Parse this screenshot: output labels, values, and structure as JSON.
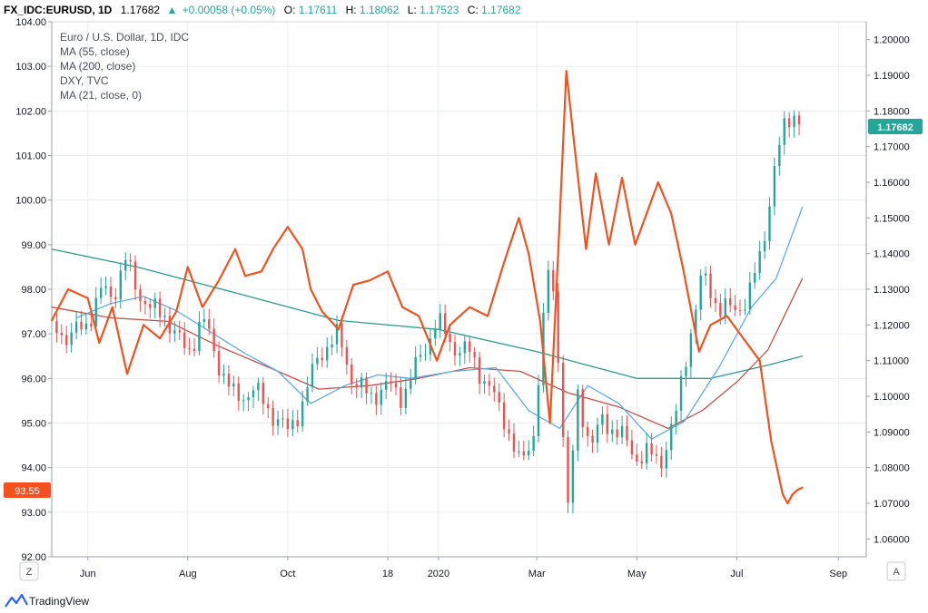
{
  "header": {
    "symbol": "FX_IDC:EURUSD, 1D",
    "last": "1.17682",
    "arrow": "▲",
    "change": "+0.00058 (+0.05%)",
    "o_label": "O:",
    "o_value": "1.17611",
    "h_label": "H:",
    "h_value": "1.18062",
    "l_label": "L:",
    "l_value": "1.17523",
    "c_label": "C:",
    "c_value": "1.17682"
  },
  "legend": [
    "Euro / U.S. Dollar, 1D, IDC",
    "MA (55, close)",
    "MA (200, close)",
    "DXY, TVC",
    "MA (21, close, 0)"
  ],
  "colors": {
    "up": "#26a69a",
    "down": "#ef5350",
    "dxy": "#f4511e",
    "ma55": "#5aaee8",
    "ma200": "#c8504a",
    "ma21": "#2a9d8f"
  },
  "buttons": {
    "left": "Z",
    "right": "A"
  },
  "brand": {
    "name": "TradingView"
  },
  "chart_data": {
    "type": "line",
    "x_range": [
      "2019-05-10",
      "2020-09-18"
    ],
    "x_ticks": [
      "Jun",
      "Aug",
      "Oct",
      "18",
      "2020",
      "Mar",
      "May",
      "Jul",
      "Sep"
    ],
    "x_tick_dates": [
      "2019-06-01",
      "2019-08-01",
      "2019-10-01",
      "2019-12-01",
      "2020-01-01",
      "2020-03-01",
      "2020-05-01",
      "2020-07-01",
      "2020-09-01"
    ],
    "left_axis": {
      "range": [
        92.0,
        104.0
      ],
      "ticks": [
        "104.00",
        "103.00",
        "102.00",
        "101.00",
        "100.00",
        "99.00",
        "98.00",
        "97.00",
        "96.00",
        "95.00",
        "94.00",
        "93.00",
        "92.00"
      ],
      "last_label": "93.55"
    },
    "right_axis": {
      "range": [
        1.055,
        1.205
      ],
      "ticks": [
        "1.20000",
        "1.19000",
        "1.18000",
        "1.17000",
        "1.16000",
        "1.15000",
        "1.14000",
        "1.13000",
        "1.12000",
        "1.11000",
        "1.10000",
        "1.09000",
        "1.08000",
        "1.07000",
        "1.06000"
      ],
      "last_label": "1.17682"
    },
    "series": [
      {
        "name": "DXY, TVC",
        "axis": "left",
        "points": [
          [
            "2019-05-10",
            97.3
          ],
          [
            "2019-05-20",
            98.0
          ],
          [
            "2019-06-01",
            97.8
          ],
          [
            "2019-06-08",
            96.8
          ],
          [
            "2019-06-16",
            97.6
          ],
          [
            "2019-06-25",
            96.1
          ],
          [
            "2019-07-05",
            97.2
          ],
          [
            "2019-07-15",
            96.9
          ],
          [
            "2019-07-25",
            97.5
          ],
          [
            "2019-08-01",
            98.5
          ],
          [
            "2019-08-10",
            97.6
          ],
          [
            "2019-08-20",
            98.2
          ],
          [
            "2019-08-30",
            98.9
          ],
          [
            "2019-09-05",
            98.3
          ],
          [
            "2019-09-15",
            98.4
          ],
          [
            "2019-09-22",
            98.9
          ],
          [
            "2019-10-01",
            99.4
          ],
          [
            "2019-10-10",
            98.9
          ],
          [
            "2019-10-15",
            98.0
          ],
          [
            "2019-10-22",
            97.5
          ],
          [
            "2019-11-01",
            97.1
          ],
          [
            "2019-11-10",
            98.1
          ],
          [
            "2019-11-20",
            98.2
          ],
          [
            "2019-12-01",
            98.4
          ],
          [
            "2019-12-10",
            97.6
          ],
          [
            "2019-12-20",
            97.4
          ],
          [
            "2019-12-31",
            96.4
          ],
          [
            "2020-01-08",
            97.2
          ],
          [
            "2020-01-20",
            97.6
          ],
          [
            "2020-01-31",
            97.4
          ],
          [
            "2020-02-10",
            98.6
          ],
          [
            "2020-02-19",
            99.6
          ],
          [
            "2020-02-25",
            98.8
          ],
          [
            "2020-03-03",
            97.3
          ],
          [
            "2020-03-09",
            95.0
          ],
          [
            "2020-03-14",
            98.8
          ],
          [
            "2020-03-19",
            102.9
          ],
          [
            "2020-03-24",
            101.2
          ],
          [
            "2020-03-31",
            98.9
          ],
          [
            "2020-04-06",
            100.6
          ],
          [
            "2020-04-14",
            99.0
          ],
          [
            "2020-04-22",
            100.5
          ],
          [
            "2020-04-30",
            99.0
          ],
          [
            "2020-05-08",
            99.8
          ],
          [
            "2020-05-14",
            100.4
          ],
          [
            "2020-05-22",
            99.7
          ],
          [
            "2020-05-29",
            98.5
          ],
          [
            "2020-06-08",
            96.6
          ],
          [
            "2020-06-15",
            97.2
          ],
          [
            "2020-06-25",
            97.4
          ],
          [
            "2020-07-05",
            96.9
          ],
          [
            "2020-07-15",
            96.4
          ],
          [
            "2020-07-22",
            94.6
          ],
          [
            "2020-07-29",
            93.4
          ],
          [
            "2020-08-01",
            93.2
          ],
          [
            "2020-08-04",
            93.4
          ],
          [
            "2020-08-07",
            93.5
          ],
          [
            "2020-08-10",
            93.55
          ]
        ]
      },
      {
        "name": "MA (55, close)",
        "axis": "right",
        "points": [
          [
            "2019-05-25",
            1.122
          ],
          [
            "2019-06-15",
            1.126
          ],
          [
            "2019-07-05",
            1.128
          ],
          [
            "2019-07-25",
            1.124
          ],
          [
            "2019-08-15",
            1.118
          ],
          [
            "2019-09-05",
            1.112
          ],
          [
            "2019-09-25",
            1.107
          ],
          [
            "2019-10-15",
            1.098
          ],
          [
            "2019-11-05",
            1.103
          ],
          [
            "2019-11-25",
            1.106
          ],
          [
            "2019-12-15",
            1.105
          ],
          [
            "2020-01-10",
            1.107
          ],
          [
            "2020-02-05",
            1.108
          ],
          [
            "2020-02-25",
            1.096
          ],
          [
            "2020-03-15",
            1.091
          ],
          [
            "2020-04-01",
            1.103
          ],
          [
            "2020-04-20",
            1.098
          ],
          [
            "2020-05-10",
            1.088
          ],
          [
            "2020-05-30",
            1.093
          ],
          [
            "2020-06-20",
            1.108
          ],
          [
            "2020-07-10",
            1.125
          ],
          [
            "2020-07-25",
            1.133
          ],
          [
            "2020-08-10",
            1.153
          ]
        ]
      },
      {
        "name": "MA (200, close)",
        "axis": "right",
        "points": [
          [
            "2019-05-10",
            1.125
          ],
          [
            "2019-06-15",
            1.122
          ],
          [
            "2019-07-20",
            1.121
          ],
          [
            "2019-08-20",
            1.114
          ],
          [
            "2019-09-20",
            1.108
          ],
          [
            "2019-10-20",
            1.102
          ],
          [
            "2019-11-20",
            1.103
          ],
          [
            "2019-12-20",
            1.105
          ],
          [
            "2020-01-20",
            1.108
          ],
          [
            "2020-02-20",
            1.107
          ],
          [
            "2020-03-20",
            1.101
          ],
          [
            "2020-04-20",
            1.097
          ],
          [
            "2020-05-20",
            1.091
          ],
          [
            "2020-06-10",
            1.096
          ],
          [
            "2020-07-01",
            1.104
          ],
          [
            "2020-07-20",
            1.113
          ],
          [
            "2020-08-10",
            1.133
          ]
        ]
      },
      {
        "name": "MA (21, close, 0)",
        "axis": "left",
        "points": [
          [
            "2019-05-10",
            98.9
          ],
          [
            "2019-07-01",
            98.5
          ],
          [
            "2019-09-01",
            97.9
          ],
          [
            "2019-11-01",
            97.3
          ],
          [
            "2020-01-01",
            97.1
          ],
          [
            "2020-03-01",
            96.6
          ],
          [
            "2020-05-01",
            96.0
          ],
          [
            "2020-06-15",
            96.0
          ],
          [
            "2020-07-20",
            96.3
          ],
          [
            "2020-08-10",
            96.5
          ]
        ]
      },
      {
        "name": "Euro / U.S. Dollar, 1D, IDC",
        "axis": "right",
        "type": "candlestick",
        "points": [
          [
            "2019-05-10",
            1.121
          ],
          [
            "2019-05-20",
            1.116
          ],
          [
            "2019-06-01",
            1.121
          ],
          [
            "2019-06-10",
            1.13
          ],
          [
            "2019-06-16",
            1.128
          ],
          [
            "2019-06-24",
            1.138
          ],
          [
            "2019-07-01",
            1.13
          ],
          [
            "2019-07-10",
            1.124
          ],
          [
            "2019-07-18",
            1.123
          ],
          [
            "2019-07-26",
            1.116
          ],
          [
            "2019-08-01",
            1.112
          ],
          [
            "2019-08-10",
            1.122
          ],
          [
            "2019-08-20",
            1.109
          ],
          [
            "2019-08-30",
            1.099
          ],
          [
            "2019-09-10",
            1.102
          ],
          [
            "2019-09-20",
            1.096
          ],
          [
            "2019-10-01",
            1.09
          ],
          [
            "2019-10-10",
            1.098
          ],
          [
            "2019-10-20",
            1.112
          ],
          [
            "2019-11-01",
            1.117
          ],
          [
            "2019-11-10",
            1.104
          ],
          [
            "2019-11-20",
            1.1
          ],
          [
            "2019-12-01",
            1.103
          ],
          [
            "2019-12-10",
            1.1
          ],
          [
            "2019-12-20",
            1.11
          ],
          [
            "2019-12-31",
            1.121
          ],
          [
            "2020-01-10",
            1.114
          ],
          [
            "2020-01-20",
            1.112
          ],
          [
            "2020-01-31",
            1.103
          ],
          [
            "2020-02-10",
            1.094
          ],
          [
            "2020-02-20",
            1.08
          ],
          [
            "2020-02-28",
            1.09
          ],
          [
            "2020-03-09",
            1.14
          ],
          [
            "2020-03-14",
            1.112
          ],
          [
            "2020-03-20",
            1.068
          ],
          [
            "2020-03-26",
            1.1
          ],
          [
            "2020-04-03",
            1.086
          ],
          [
            "2020-04-10",
            1.093
          ],
          [
            "2020-04-20",
            1.09
          ],
          [
            "2020-04-30",
            1.083
          ],
          [
            "2020-05-08",
            1.084
          ],
          [
            "2020-05-15",
            1.081
          ],
          [
            "2020-05-25",
            1.095
          ],
          [
            "2020-06-01",
            1.114
          ],
          [
            "2020-06-10",
            1.134
          ],
          [
            "2020-06-20",
            1.125
          ],
          [
            "2020-06-30",
            1.124
          ],
          [
            "2020-07-08",
            1.128
          ],
          [
            "2020-07-16",
            1.14
          ],
          [
            "2020-07-24",
            1.164
          ],
          [
            "2020-07-30",
            1.175
          ],
          [
            "2020-08-04",
            1.18
          ],
          [
            "2020-08-10",
            1.17682
          ]
        ]
      }
    ],
    "grid": true
  }
}
